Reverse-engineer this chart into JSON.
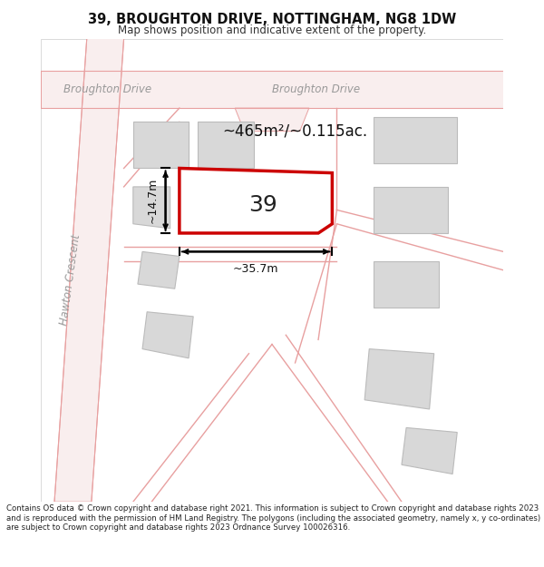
{
  "title": "39, BROUGHTON DRIVE, NOTTINGHAM, NG8 1DW",
  "subtitle": "Map shows position and indicative extent of the property.",
  "footer": "Contains OS data © Crown copyright and database right 2021. This information is subject to Crown copyright and database rights 2023 and is reproduced with the permission of HM Land Registry. The polygons (including the associated geometry, namely x, y co-ordinates) are subject to Crown copyright and database rights 2023 Ordnance Survey 100026316.",
  "map_bg": "#f2f2f2",
  "road_color": "#e8a0a0",
  "road_fill": "#f9eeee",
  "building_fill": "#d8d8d8",
  "building_edge": "#bbbbbb",
  "highlighted_fill": "#ffffff",
  "highlighted_edge": "#cc0000",
  "area_text": "~465m²/~0.115ac.",
  "number_text": "39",
  "dim_width": "~35.7m",
  "dim_height": "~14.7m",
  "road_label_left": "Broughton Drive",
  "road_label_right": "Broughton Drive",
  "side_road_label": "Hawton Crescent",
  "title_fontsize": 10.5,
  "subtitle_fontsize": 8.5,
  "footer_fontsize": 6.2
}
